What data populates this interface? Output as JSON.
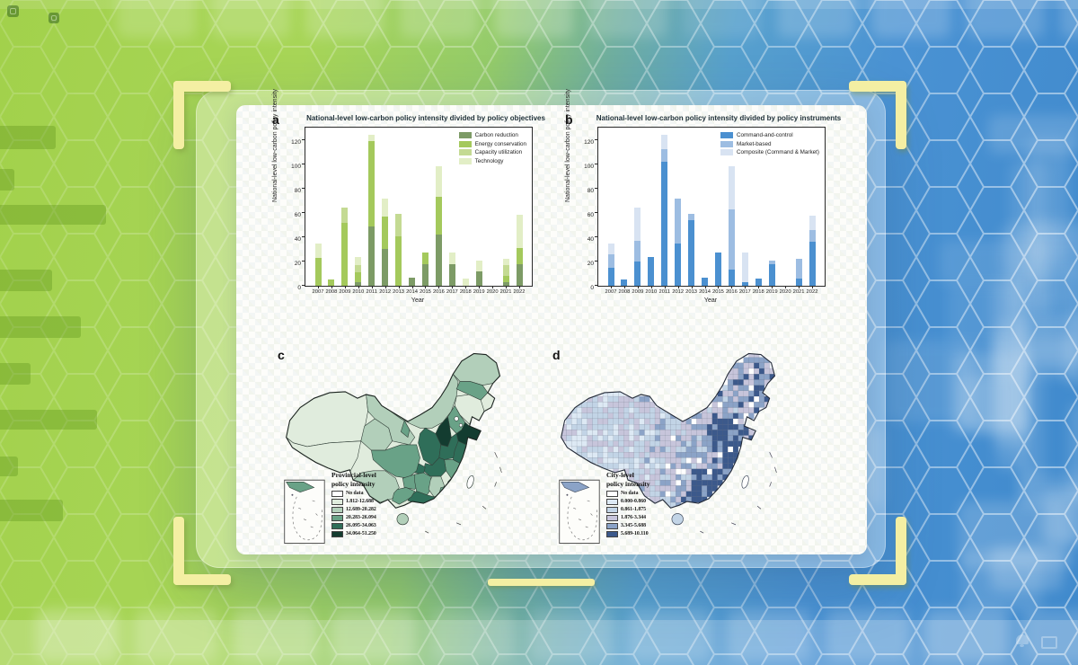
{
  "background": {
    "accent_bracket_color": "#f4efa3",
    "left_gradient_color": "#a2d14b",
    "right_gradient_color": "#4a92d3"
  },
  "figure": {
    "panel_a": {
      "letter": "a",
      "title": "National-level low-carbon policy intensity divided by policy objectives",
      "ylabel": "National-level low-carbon policy intensity",
      "xlabel": "Year"
    },
    "panel_b": {
      "letter": "b",
      "title": "National-level low-carbon policy intensity divided by policy instruments",
      "ylabel": "National-level low-carbon policy intensity",
      "xlabel": "Year"
    },
    "panel_c": {
      "letter": "c",
      "legend_title_line1": "Provincial-level",
      "legend_title_line2": "policy intensity"
    },
    "panel_d": {
      "letter": "d",
      "legend_title_line1": "City-level",
      "legend_title_line2": "policy intensity"
    }
  },
  "chart_data": [
    {
      "panel": "a",
      "type": "bar",
      "stacked": true,
      "title": "National-level low-carbon policy intensity divided by policy objectives",
      "xlabel": "Year",
      "ylabel": "National-level low-carbon policy intensity",
      "ylim": [
        0,
        130
      ],
      "yticks": [
        0,
        20,
        40,
        60,
        80,
        100,
        120
      ],
      "legend_position": "top-right",
      "categories": [
        "2007",
        "2008",
        "2009",
        "2010",
        "2011",
        "2012",
        "2013",
        "2014",
        "2015",
        "2016",
        "2017",
        "2018",
        "2019",
        "2020",
        "2021",
        "2022"
      ],
      "series": [
        {
          "name": "Carbon reduction",
          "color": "#7d9b66",
          "values": [
            0,
            0,
            0,
            3,
            49,
            30,
            0,
            7,
            18,
            42,
            18,
            0,
            12,
            0,
            3,
            18
          ]
        },
        {
          "name": "Energy conservation",
          "color": "#a4c95c",
          "values": [
            23,
            5,
            52,
            8,
            70,
            27,
            41,
            0,
            9,
            31,
            0,
            0,
            0,
            0,
            5,
            13
          ]
        },
        {
          "name": "Capacity utilization",
          "color": "#c4da93",
          "values": [
            0,
            0,
            12,
            6,
            0,
            0,
            18,
            0,
            0,
            0,
            0,
            0,
            0,
            0,
            9,
            0
          ]
        },
        {
          "name": "Technology",
          "color": "#e2eec6",
          "values": [
            12,
            0,
            0,
            7,
            5,
            15,
            0,
            0,
            0,
            25,
            9,
            6,
            9,
            0,
            5,
            27
          ]
        }
      ]
    },
    {
      "panel": "b",
      "type": "bar",
      "stacked": true,
      "title": "National-level low-carbon policy intensity divided by policy instruments",
      "xlabel": "Year",
      "ylabel": "National-level low-carbon policy intensity",
      "ylim": [
        0,
        130
      ],
      "yticks": [
        0,
        20,
        40,
        60,
        80,
        100,
        120
      ],
      "legend_position": "top-right",
      "categories": [
        "2007",
        "2008",
        "2009",
        "2010",
        "2011",
        "2012",
        "2013",
        "2014",
        "2015",
        "2016",
        "2017",
        "2018",
        "2019",
        "2020",
        "2021",
        "2022"
      ],
      "series": [
        {
          "name": "Command-and-control",
          "color": "#4b90d0",
          "values": [
            15,
            5,
            20,
            24,
            102,
            35,
            54,
            7,
            27,
            13,
            3,
            6,
            18,
            0,
            6,
            36
          ]
        },
        {
          "name": "Market-based",
          "color": "#9dbde2",
          "values": [
            11,
            0,
            17,
            0,
            10,
            37,
            5,
            0,
            0,
            50,
            0,
            0,
            3,
            0,
            16,
            10
          ]
        },
        {
          "name": "Composite (Command & Market)",
          "color": "#d8e3f2",
          "values": [
            9,
            0,
            27,
            0,
            12,
            0,
            0,
            0,
            0,
            35,
            24,
            0,
            0,
            0,
            0,
            12
          ]
        }
      ]
    },
    {
      "panel": "c",
      "type": "choropleth",
      "title": "Provincial-level policy intensity",
      "classes": [
        {
          "label": "No data",
          "color": "#ffffff"
        },
        {
          "label": "1.812-12.688",
          "color": "#e0ecdd"
        },
        {
          "label": "12.689-20.282",
          "color": "#b2cfba"
        },
        {
          "label": "20.283-26.094",
          "color": "#69a287"
        },
        {
          "label": "26.095-34.063",
          "color": "#2f6e59"
        },
        {
          "label": "34.064-51.250",
          "color": "#133c30"
        }
      ],
      "regions": {
        "xinjiang": 1,
        "tibet": 1,
        "qinghai": 2,
        "gansu": 2,
        "ningxia": 3,
        "inner_mongolia": 2,
        "heilongjiang": 2,
        "jilin": 3,
        "liaoning": 1,
        "hebei": 3,
        "beijing": 0,
        "tianjin": 0,
        "shanxi": 5,
        "shandong": 5,
        "shaanxi": 4,
        "henan": 4,
        "jiangsu": 4,
        "anhui": 3,
        "shanghai": 2,
        "hubei": 4,
        "chongqing": 4,
        "sichuan": 3,
        "guizhou": 3,
        "yunnan": 2,
        "hunan": 3,
        "jiangxi": 2,
        "zhejiang": 4,
        "fujian": 3,
        "guangxi": 3,
        "guangdong": 4,
        "hainan": 2,
        "taiwan": 0
      }
    },
    {
      "panel": "d",
      "type": "choropleth",
      "title": "City-level policy intensity",
      "classes": [
        {
          "label": "No data",
          "color": "#ffffff"
        },
        {
          "label": "0.000-0.860",
          "color": "#dde9f4"
        },
        {
          "label": "0.861-1.875",
          "color": "#c2d4e6"
        },
        {
          "label": "1.876-3.344",
          "color": "#c7c5db"
        },
        {
          "label": "3.345-5.688",
          "color": "#8ba3c7"
        },
        {
          "label": "5.689-10.110",
          "color": "#3c598b"
        }
      ]
    }
  ]
}
